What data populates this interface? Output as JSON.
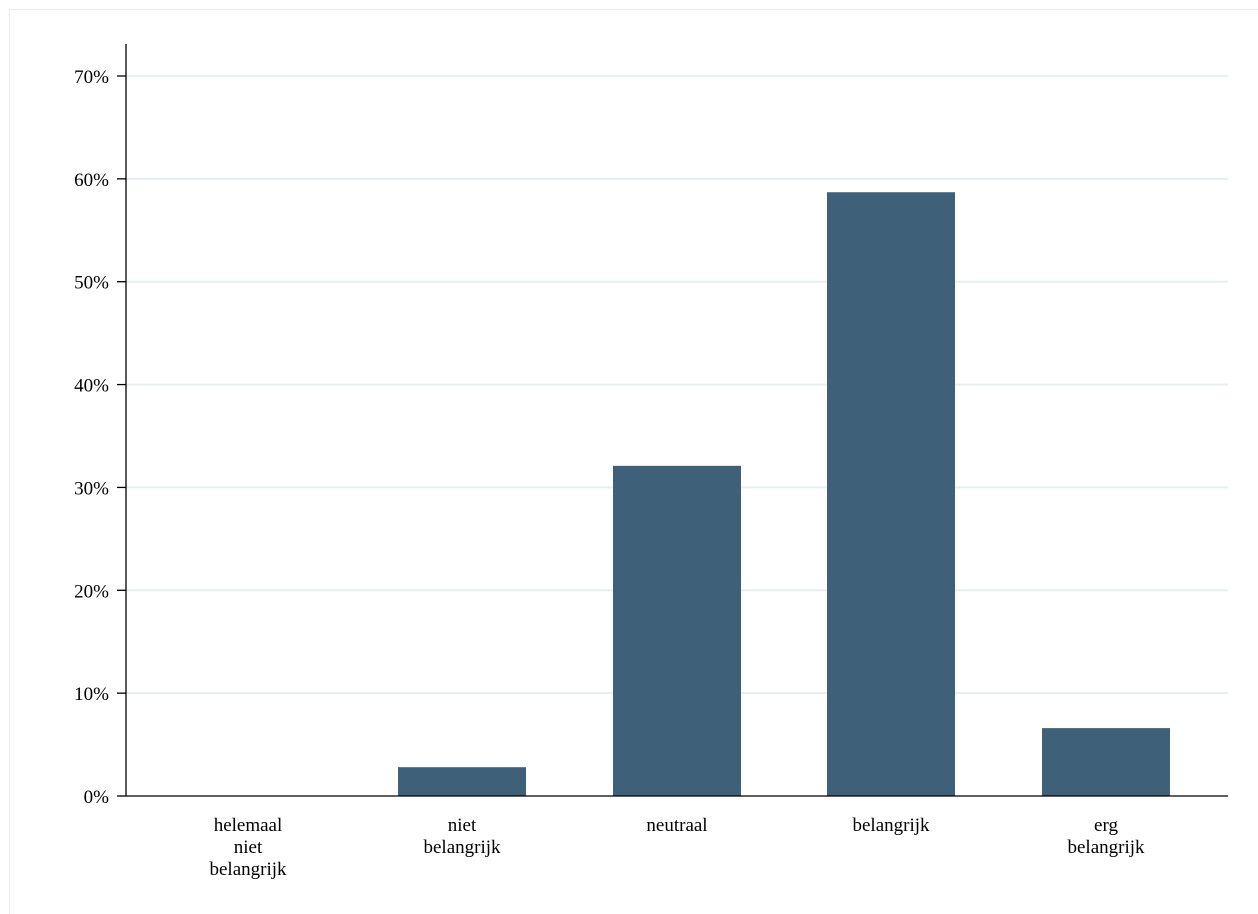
{
  "chart_data": {
    "type": "bar",
    "categories": [
      [
        "helemaal",
        "niet",
        "belangrijk"
      ],
      [
        "niet",
        "belangrijk"
      ],
      [
        "neutraal"
      ],
      [
        "belangrijk"
      ],
      [
        "erg",
        "belangrijk"
      ]
    ],
    "values": [
      0,
      2.8,
      32.1,
      58.7,
      6.6
    ],
    "yticks": [
      0,
      10,
      20,
      30,
      40,
      50,
      60,
      70
    ],
    "ytick_labels": [
      "0%",
      "10%",
      "20%",
      "30%",
      "40%",
      "50%",
      "60%",
      "70%"
    ],
    "ylim": [
      0,
      73
    ],
    "title": "",
    "xlabel": "",
    "ylabel": "",
    "grid": true,
    "bar_color": "#3f6079",
    "grid_color": "#e8eff1",
    "axis_color": "#000000"
  }
}
